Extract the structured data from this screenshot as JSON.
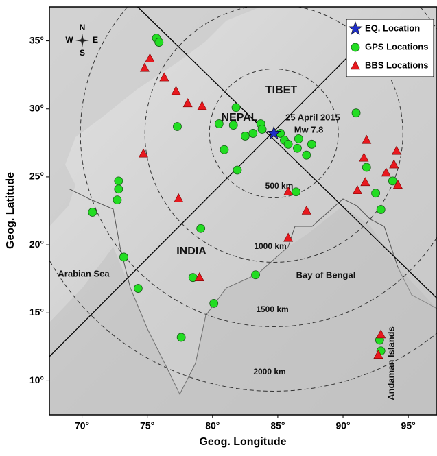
{
  "chart_data": {
    "type": "scatter",
    "xlabel": "Geog. Longitude",
    "ylabel": "Geog. Latitude",
    "xlim": [
      67.5,
      97.2
    ],
    "ylim": [
      7.5,
      37.5
    ],
    "xticks": [
      {
        "value": 70,
        "label": "70°"
      },
      {
        "value": 75,
        "label": "75°"
      },
      {
        "value": 80,
        "label": "80°"
      },
      {
        "value": 85,
        "label": "85°"
      },
      {
        "value": 90,
        "label": "90°"
      },
      {
        "value": 95,
        "label": "95°"
      }
    ],
    "yticks": [
      {
        "value": 10,
        "label": "10°"
      },
      {
        "value": 15,
        "label": "15°"
      },
      {
        "value": 20,
        "label": "20°"
      },
      {
        "value": 25,
        "label": "25°"
      },
      {
        "value": 30,
        "label": "30°"
      },
      {
        "value": 35,
        "label": "35°"
      }
    ],
    "legend": "upper right",
    "series": [
      {
        "name": "EQ.  Location",
        "color": "#1f2fc8",
        "marker": "star",
        "x": [
          84.7
        ],
        "values": [
          28.2
        ]
      },
      {
        "name": "GPS Locations",
        "color": "#22dd22",
        "marker": "circle",
        "x": [
          75.7,
          75.9,
          81.8,
          80.5,
          81.6,
          77.3,
          83.7,
          83.8,
          83.1,
          82.5,
          80.9,
          81.9,
          85.2,
          85.5,
          85.8,
          86.6,
          86.5,
          87.2,
          87.6,
          91.0,
          91.8,
          92.5,
          92.9,
          93.8,
          72.8,
          72.8,
          72.7,
          70.8,
          79.1,
          73.2,
          78.5,
          83.3,
          74.3,
          80.1,
          77.6,
          86.4,
          92.8,
          92.9
        ],
        "values": [
          35.2,
          34.9,
          30.1,
          28.9,
          28.8,
          28.7,
          28.9,
          28.5,
          28.2,
          28.0,
          27.0,
          25.5,
          28.2,
          27.7,
          27.4,
          27.8,
          27.1,
          26.6,
          27.4,
          29.7,
          25.7,
          23.8,
          22.6,
          24.7,
          24.7,
          24.1,
          23.3,
          22.4,
          21.2,
          19.1,
          17.6,
          17.8,
          16.8,
          15.7,
          13.2,
          23.9,
          13.0,
          12.2
        ]
      },
      {
        "name": "BBS Locations",
        "color": "#e8181e",
        "marker": "triangle",
        "x": [
          75.2,
          74.8,
          76.3,
          77.2,
          78.1,
          79.2,
          74.7,
          77.4,
          85.8,
          87.2,
          85.8,
          79.0,
          91.8,
          91.6,
          91.1,
          91.7,
          93.3,
          93.9,
          94.1,
          94.2,
          92.9,
          92.7
        ],
        "values": [
          33.7,
          33.0,
          32.3,
          31.3,
          30.4,
          30.2,
          26.7,
          23.4,
          23.9,
          22.5,
          20.5,
          17.6,
          27.7,
          26.4,
          24.0,
          24.6,
          25.3,
          25.9,
          26.9,
          24.4,
          13.4,
          11.9
        ]
      }
    ],
    "rings": [
      "500 km",
      "1000 km",
      "1500 km",
      "2000 km"
    ],
    "annotations": [
      "TIBET",
      "NEPAL",
      "25 April 2015",
      "Mw 7.8",
      "INDIA",
      "Arabian Sea",
      "Bay of Bengal",
      "Andaman Islands"
    ],
    "compass": [
      "N",
      "S",
      "E",
      "W"
    ]
  }
}
